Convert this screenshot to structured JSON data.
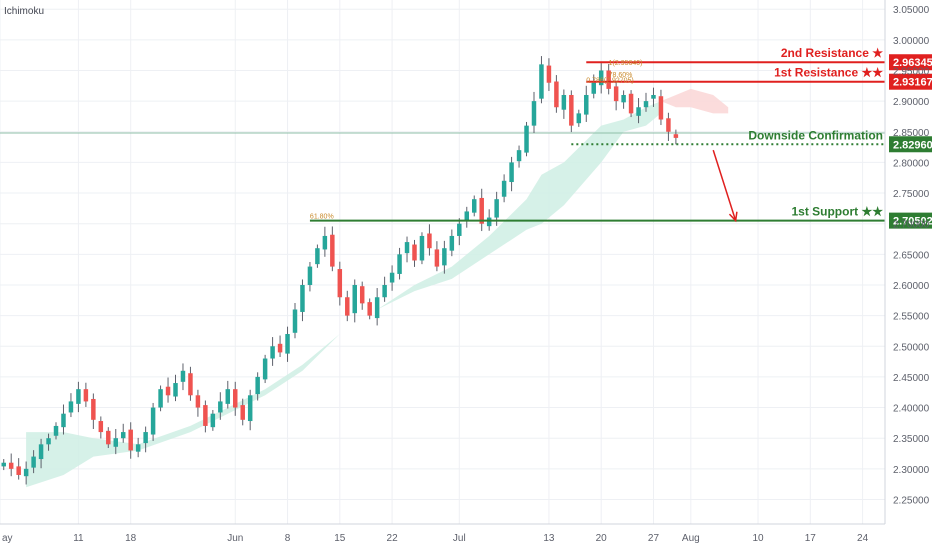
{
  "indicator_label": "Ichimoku",
  "colors": {
    "up": "#26a69a",
    "down": "#ef5350",
    "wick": "#5d606b",
    "cloud_bull": "#cfeee4",
    "cloud_bear": "#fad6d6",
    "resistance": "#e0201f",
    "support": "#2e7d32",
    "grid": "#eef0f4",
    "axis_text": "#5d606b",
    "current_price_line": "#8fbfa8",
    "fib_text": "#c98a2c"
  },
  "chart_data": {
    "type": "candlestick",
    "symbol_indicator": "Ichimoku",
    "y_axis": {
      "range": [
        2.21,
        3.065
      ],
      "ticks": [
        "3.05000",
        "3.00000",
        "2.95000",
        "2.90000",
        "2.85000",
        "2.80000",
        "2.75000",
        "2.70000",
        "2.65000",
        "2.60000",
        "2.55000",
        "2.50000",
        "2.45000",
        "2.40000",
        "2.35000",
        "2.30000",
        "2.25000"
      ],
      "tick_values": [
        3.05,
        3.0,
        2.95,
        2.9,
        2.85,
        2.8,
        2.75,
        2.7,
        2.65,
        2.6,
        2.55,
        2.5,
        2.45,
        2.4,
        2.35,
        2.3,
        2.25
      ]
    },
    "x_axis": {
      "ticks": [
        {
          "label": "ay",
          "day": -0.5
        },
        {
          "label": "11",
          "day": 10
        },
        {
          "label": "18",
          "day": 17
        },
        {
          "label": "Jun",
          "day": 31
        },
        {
          "label": "8",
          "day": 38
        },
        {
          "label": "15",
          "day": 45
        },
        {
          "label": "22",
          "day": 52
        },
        {
          "label": "Jul",
          "day": 61
        },
        {
          "label": "13",
          "day": 73
        },
        {
          "label": "20",
          "day": 80
        },
        {
          "label": "27",
          "day": 87
        },
        {
          "label": "Aug",
          "day": 92
        },
        {
          "label": "10",
          "day": 101
        },
        {
          "label": "17",
          "day": 108
        },
        {
          "label": "24",
          "day": 115
        }
      ],
      "day_range": [
        -0.5,
        118
      ]
    },
    "closes": [
      2.31,
      2.3,
      2.29,
      2.3,
      2.32,
      2.34,
      2.35,
      2.37,
      2.39,
      2.41,
      2.43,
      2.41,
      2.38,
      2.36,
      2.34,
      2.35,
      2.36,
      2.33,
      2.34,
      2.36,
      2.4,
      2.43,
      2.42,
      2.44,
      2.46,
      2.42,
      2.4,
      2.37,
      2.39,
      2.41,
      2.43,
      2.4,
      2.38,
      2.42,
      2.45,
      2.48,
      2.5,
      2.49,
      2.52,
      2.56,
      2.6,
      2.63,
      2.66,
      2.68,
      2.63,
      2.58,
      2.55,
      2.6,
      2.57,
      2.55,
      2.58,
      2.6,
      2.62,
      2.65,
      2.67,
      2.64,
      2.68,
      2.66,
      2.63,
      2.66,
      2.68,
      2.7,
      2.72,
      2.74,
      2.7,
      2.71,
      2.74,
      2.77,
      2.8,
      2.82,
      2.86,
      2.9,
      2.96,
      2.93,
      2.89,
      2.91,
      2.86,
      2.88,
      2.91,
      2.93,
      2.95,
      2.92,
      2.9,
      2.91,
      2.88,
      2.89,
      2.9,
      2.91,
      2.87,
      2.85,
      2.84
    ],
    "cloud_segments": [
      {
        "sentiment": "bullish",
        "upper": [
          [
            3,
            2.36
          ],
          [
            8,
            2.36
          ],
          [
            12,
            2.35
          ],
          [
            18,
            2.34
          ],
          [
            25,
            2.37
          ],
          [
            30,
            2.4
          ],
          [
            35,
            2.43
          ],
          [
            40,
            2.47
          ],
          [
            45,
            2.52
          ],
          [
            50,
            2.56
          ],
          [
            55,
            2.6
          ],
          [
            60,
            2.63
          ],
          [
            65,
            2.68
          ],
          [
            70,
            2.74
          ],
          [
            72,
            2.78
          ],
          [
            75,
            2.8
          ],
          [
            80,
            2.86
          ],
          [
            83,
            2.87
          ],
          [
            86,
            2.89
          ],
          [
            88,
            2.9
          ]
        ],
        "lower": [
          [
            88,
            2.88
          ],
          [
            86,
            2.86
          ],
          [
            83,
            2.85
          ],
          [
            80,
            2.8
          ],
          [
            75,
            2.73
          ],
          [
            72,
            2.7
          ],
          [
            70,
            2.69
          ],
          [
            65,
            2.65
          ],
          [
            60,
            2.61
          ],
          [
            55,
            2.59
          ],
          [
            50,
            2.56
          ],
          [
            45,
            2.52
          ],
          [
            40,
            2.46
          ],
          [
            35,
            2.42
          ],
          [
            30,
            2.39
          ],
          [
            25,
            2.36
          ],
          [
            18,
            2.33
          ],
          [
            12,
            2.32
          ],
          [
            8,
            2.29
          ],
          [
            3,
            2.27
          ]
        ]
      },
      {
        "sentiment": "bearish",
        "upper": [
          [
            88,
            2.9
          ],
          [
            90,
            2.91
          ],
          [
            92,
            2.92
          ],
          [
            95,
            2.91
          ],
          [
            97,
            2.89
          ]
        ],
        "lower": [
          [
            97,
            2.88
          ],
          [
            95,
            2.88
          ],
          [
            92,
            2.89
          ],
          [
            90,
            2.89
          ],
          [
            88,
            2.9
          ]
        ]
      }
    ],
    "current_price": {
      "value": 2.848,
      "color": "#8fbfa8"
    },
    "levels": [
      {
        "name": "2nd Resistance",
        "label": "2nd Resistance ★",
        "price": 2.96345,
        "price_label": "2.96345",
        "role": "resistance",
        "from_day": 78
      },
      {
        "name": "1st Resistance",
        "label": "1st Resistance ★★",
        "price": 2.93167,
        "price_label": "2.93167",
        "role": "resistance",
        "from_day": 78
      },
      {
        "name": "Downside Confirmation",
        "label": "Downside Confirmation",
        "price": 2.8296,
        "price_label": "2.82960",
        "role": "pivot",
        "from_day": 76
      },
      {
        "name": "1st Support",
        "label": "1st Support ★★",
        "price": 2.70502,
        "price_label": "2.70502",
        "role": "support",
        "from_day": 41
      }
    ],
    "fib_annotations": [
      {
        "text": "1(2.95640)",
        "price": 2.956,
        "day": 81
      },
      {
        "text": "78.60%",
        "price": 2.936,
        "day": 81
      },
      {
        "text": "0.786(2.92705)",
        "price": 2.927,
        "day": 78
      },
      {
        "text": "61.80%",
        "price": 2.705,
        "day": 41
      }
    ],
    "arrow": {
      "from": {
        "day": 95,
        "price": 2.82
      },
      "to": {
        "day": 98,
        "price": 2.705
      },
      "color": "#e0201f"
    }
  }
}
